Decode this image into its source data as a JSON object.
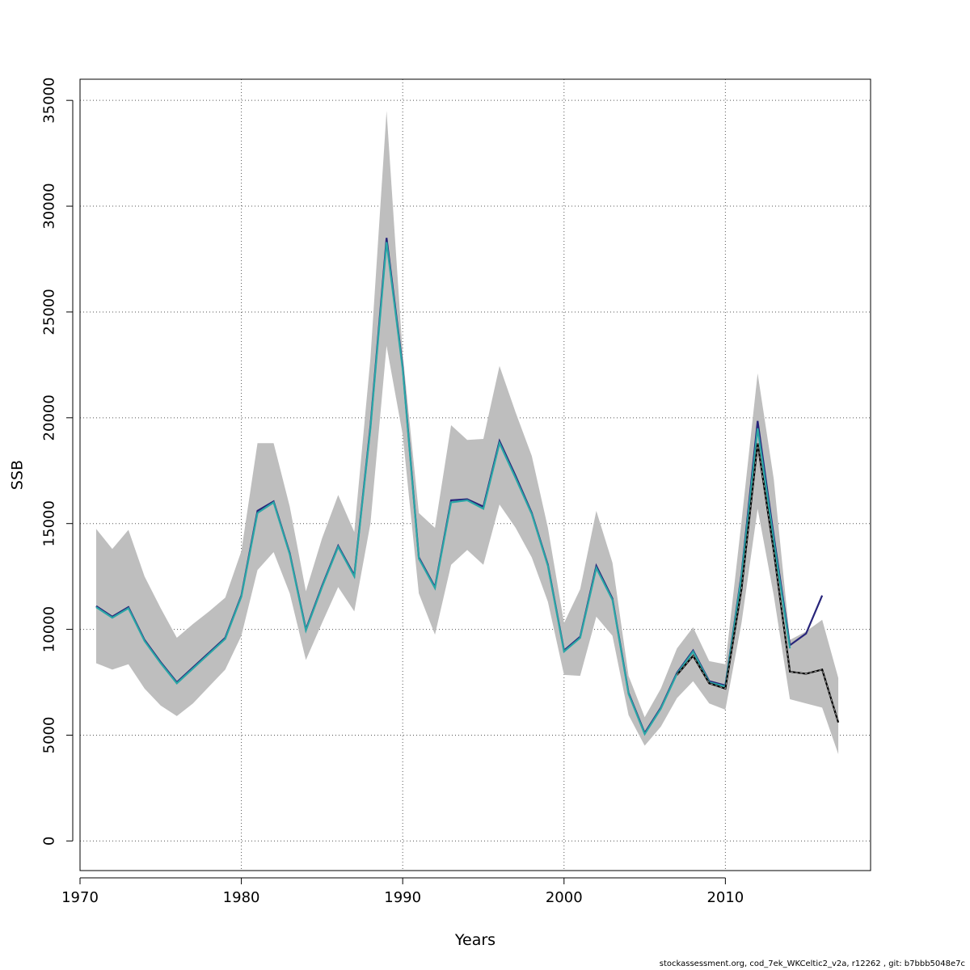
{
  "chart_data": {
    "type": "line",
    "xlabel": "Years",
    "ylabel": "SSB",
    "xlim": [
      1970,
      2019
    ],
    "ylim": [
      -1400,
      36000
    ],
    "grid": true,
    "x_ticks": [
      1970,
      1980,
      1990,
      2000,
      2010
    ],
    "y_ticks": [
      0,
      5000,
      10000,
      15000,
      20000,
      25000,
      30000,
      35000
    ],
    "colors": {
      "band": "#bebebe",
      "band_light": "#a6c8ec",
      "line_navy": "#27247a",
      "line_teal": "#2aa6a6",
      "line_black": "#000000",
      "grid": "#555555"
    },
    "confidence_band": {
      "x": [
        1971,
        1972,
        1973,
        1974,
        1975,
        1976,
        1977,
        1978,
        1979,
        1980,
        1981,
        1982,
        1983,
        1984,
        1985,
        1986,
        1987,
        1988,
        1989,
        1990,
        1991,
        1992,
        1993,
        1994,
        1995,
        1996,
        1997,
        1998,
        1999,
        2000,
        2001,
        2002,
        2003,
        2004,
        2005,
        2006,
        2007,
        2008,
        2009,
        2010,
        2011,
        2012,
        2013,
        2014,
        2015,
        2016,
        2017
      ],
      "lower": [
        8400,
        8100,
        8350,
        7200,
        6400,
        5900,
        6500,
        7300,
        8100,
        9700,
        12800,
        13650,
        11700,
        8550,
        10300,
        12000,
        10850,
        15000,
        23400,
        19200,
        11700,
        9750,
        13050,
        13750,
        13050,
        15900,
        14800,
        13400,
        11300,
        7850,
        7800,
        10600,
        9700,
        5950,
        4500,
        5400,
        6750,
        7550,
        6500,
        6200,
        10300,
        15700,
        11600,
        6700,
        6500,
        6300,
        4100
      ],
      "upper": [
        14750,
        13800,
        14700,
        12500,
        11000,
        9600,
        10250,
        10850,
        11500,
        13700,
        18800,
        18800,
        15800,
        11800,
        14300,
        16350,
        14600,
        22800,
        34500,
        23000,
        15500,
        14800,
        19650,
        18950,
        19000,
        22450,
        20250,
        18200,
        14800,
        10300,
        11900,
        15600,
        13150,
        7800,
        5850,
        7200,
        9100,
        10100,
        8500,
        8350,
        15100,
        22100,
        17100,
        9500,
        9900,
        10450,
        7700
      ]
    },
    "series": [
      {
        "x": [
          1971,
          1972,
          1973,
          1974,
          1975,
          1976,
          1977,
          1978,
          1979,
          1980,
          1981,
          1982,
          1983,
          1984,
          1985,
          1986,
          1987,
          1988,
          1989,
          1990,
          1991,
          1992,
          1993,
          1994,
          1995,
          1996,
          1997,
          1998,
          1999,
          2000,
          2001,
          2002,
          2003,
          2004,
          2005,
          2006,
          2007,
          2008,
          2009,
          2010,
          2011,
          2012,
          2013,
          2014,
          2015,
          2016
        ],
        "values": [
          11100,
          10600,
          11050,
          9500,
          8450,
          7500,
          8200,
          8900,
          9600,
          11600,
          15600,
          16050,
          13600,
          10000,
          12050,
          13950,
          12550,
          19600,
          28500,
          22400,
          13400,
          12000,
          16100,
          16150,
          15800,
          18900,
          17250,
          15500,
          13050,
          9000,
          9650,
          13000,
          11450,
          7000,
          5100,
          6300,
          7950,
          9000,
          7550,
          7350,
          12600,
          19850,
          14400,
          9250,
          9800,
          11600
        ]
      },
      {
        "x": [
          1971,
          1972,
          1973,
          1974,
          1975,
          1976,
          1977,
          1978,
          1979,
          1980,
          1981,
          1982,
          1983,
          1984,
          1985,
          1986,
          1987,
          1988,
          1989,
          1990,
          1991,
          1992,
          1993,
          1994,
          1995,
          1996,
          1997,
          1998,
          1999,
          2000,
          2001,
          2002,
          2003,
          2004,
          2005,
          2006,
          2007,
          2008,
          2009,
          2010,
          2011,
          2012,
          2013,
          2014
        ],
        "values": [
          11050,
          10550,
          11000,
          9450,
          8400,
          7450,
          8150,
          8850,
          9550,
          11550,
          15500,
          16000,
          13550,
          9950,
          12000,
          13900,
          12500,
          19500,
          28300,
          22300,
          13350,
          11950,
          16000,
          16100,
          15700,
          18800,
          17150,
          15450,
          13000,
          8950,
          9600,
          12900,
          11400,
          6950,
          5050,
          6250,
          7900,
          8950,
          7500,
          7300,
          12500,
          19500,
          14200,
          9100
        ]
      },
      {
        "x": [
          2007,
          2008,
          2009,
          2010,
          2011,
          2012,
          2013,
          2014,
          2015,
          2016,
          2017
        ],
        "values": [
          7850,
          8750,
          7450,
          7200,
          11900,
          18800,
          13700,
          8000,
          7900,
          8100,
          5600
        ]
      }
    ]
  },
  "footer": "stockassessment.org, cod_7ek_WKCeltic2_v2a, r12262 , git: b7bbb5048e7c"
}
